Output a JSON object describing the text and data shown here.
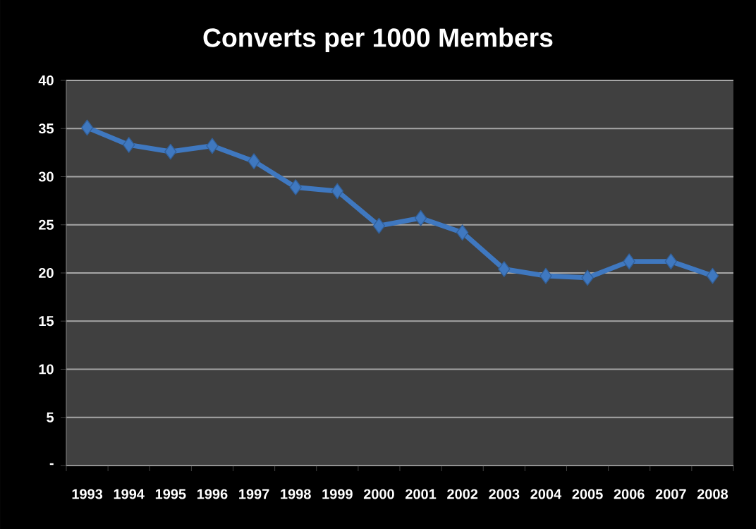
{
  "chart_data": {
    "type": "line",
    "title": "Converts per 1000 Members",
    "categories": [
      "1993",
      "1994",
      "1995",
      "1996",
      "1997",
      "1998",
      "1999",
      "2000",
      "2001",
      "2002",
      "2003",
      "2004",
      "2005",
      "2006",
      "2007",
      "2008"
    ],
    "values": [
      35.1,
      33.3,
      32.6,
      33.2,
      31.6,
      28.9,
      28.5,
      24.9,
      25.7,
      24.2,
      20.4,
      19.7,
      19.5,
      21.2,
      21.2,
      19.7
    ],
    "color": "#3f78c0",
    "ylim": [
      0,
      40
    ],
    "yticks": [
      {
        "value": 0,
        "label": "-"
      },
      5,
      10,
      15,
      20,
      25,
      30,
      35,
      40
    ],
    "grid": "y",
    "marker": "diamond",
    "line_style": "solid"
  }
}
